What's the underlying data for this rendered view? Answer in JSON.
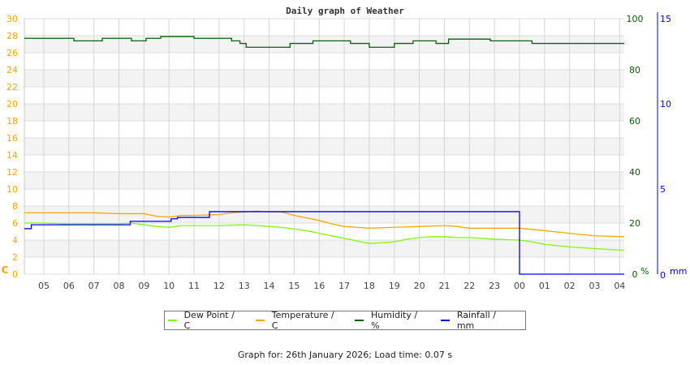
{
  "chart_data": {
    "type": "line",
    "title": "Daily graph of Weather",
    "x_ticks": [
      "05",
      "06",
      "07",
      "08",
      "09",
      "10",
      "11",
      "12",
      "13",
      "14",
      "15",
      "16",
      "17",
      "18",
      "19",
      "20",
      "21",
      "22",
      "23",
      "00",
      "01",
      "02",
      "03",
      "04"
    ],
    "x_range": [
      "04:13",
      "04:13"
    ],
    "axes": {
      "left": {
        "unit": "C",
        "range": [
          0,
          30
        ],
        "ticks": [
          0,
          2,
          4,
          6,
          8,
          10,
          12,
          14,
          16,
          18,
          20,
          22,
          24,
          26,
          28,
          30
        ],
        "color": "#ffa500"
      },
      "right_humidity": {
        "unit": "%",
        "range": [
          0,
          100
        ],
        "ticks": [
          0,
          20,
          40,
          60,
          80,
          100
        ],
        "color": "#006400"
      },
      "right_rain": {
        "unit": "mm",
        "range": [
          0,
          15
        ],
        "ticks": [
          0,
          5,
          10,
          15
        ],
        "color": "#0000ff"
      }
    },
    "grid": true,
    "legend_placement": "bottom",
    "series": [
      {
        "name": "Dew Point / C",
        "axis": "left",
        "color": "#7cfc00",
        "step": false,
        "points": [
          [
            "04:13",
            6.0
          ],
          [
            "05:00",
            6.0
          ],
          [
            "06:00",
            5.9
          ],
          [
            "07:00",
            5.9
          ],
          [
            "08:00",
            5.9
          ],
          [
            "08:30",
            6.0
          ],
          [
            "09:00",
            5.8
          ],
          [
            "09:30",
            5.6
          ],
          [
            "10:00",
            5.5
          ],
          [
            "10:30",
            5.7
          ],
          [
            "11:00",
            5.7
          ],
          [
            "12:00",
            5.7
          ],
          [
            "13:00",
            5.8
          ],
          [
            "13:30",
            5.7
          ],
          [
            "14:00",
            5.6
          ],
          [
            "14:30",
            5.5
          ],
          [
            "15:00",
            5.3
          ],
          [
            "15:30",
            5.1
          ],
          [
            "16:00",
            4.8
          ],
          [
            "16:30",
            4.5
          ],
          [
            "17:00",
            4.2
          ],
          [
            "17:30",
            3.9
          ],
          [
            "18:00",
            3.6
          ],
          [
            "18:30",
            3.7
          ],
          [
            "19:00",
            3.8
          ],
          [
            "19:30",
            4.1
          ],
          [
            "20:00",
            4.3
          ],
          [
            "20:30",
            4.4
          ],
          [
            "21:00",
            4.4
          ],
          [
            "21:30",
            4.3
          ],
          [
            "22:00",
            4.3
          ],
          [
            "23:00",
            4.1
          ],
          [
            "00:00",
            4.0
          ],
          [
            "00:30",
            3.8
          ],
          [
            "01:00",
            3.5
          ],
          [
            "02:00",
            3.2
          ],
          [
            "03:00",
            3.0
          ],
          [
            "04:13",
            2.8
          ]
        ]
      },
      {
        "name": "Temperature / C",
        "axis": "left",
        "color": "#ffa500",
        "step": false,
        "points": [
          [
            "04:13",
            7.2
          ],
          [
            "05:00",
            7.2
          ],
          [
            "06:00",
            7.2
          ],
          [
            "07:00",
            7.2
          ],
          [
            "08:00",
            7.1
          ],
          [
            "09:00",
            7.1
          ],
          [
            "09:30",
            6.8
          ],
          [
            "10:00",
            6.7
          ],
          [
            "10:30",
            6.9
          ],
          [
            "11:00",
            6.9
          ],
          [
            "12:00",
            7.0
          ],
          [
            "12:30",
            7.2
          ],
          [
            "13:00",
            7.3
          ],
          [
            "13:30",
            7.4
          ],
          [
            "14:00",
            7.3
          ],
          [
            "14:30",
            7.3
          ],
          [
            "15:00",
            6.9
          ],
          [
            "15:30",
            6.6
          ],
          [
            "16:00",
            6.3
          ],
          [
            "16:30",
            5.9
          ],
          [
            "17:00",
            5.6
          ],
          [
            "17:30",
            5.5
          ],
          [
            "18:00",
            5.4
          ],
          [
            "19:00",
            5.5
          ],
          [
            "20:00",
            5.6
          ],
          [
            "21:00",
            5.7
          ],
          [
            "21:30",
            5.6
          ],
          [
            "22:00",
            5.4
          ],
          [
            "23:00",
            5.4
          ],
          [
            "00:00",
            5.4
          ],
          [
            "01:00",
            5.1
          ],
          [
            "02:00",
            4.8
          ],
          [
            "03:00",
            4.5
          ],
          [
            "04:13",
            4.4
          ]
        ]
      },
      {
        "name": "Humidity / %",
        "axis": "right_humidity",
        "color": "#006400",
        "step": true,
        "points": [
          [
            "04:13",
            92.3
          ],
          [
            "06:12",
            91.3
          ],
          [
            "07:20",
            92.3
          ],
          [
            "08:30",
            91.3
          ],
          [
            "09:05",
            92.3
          ],
          [
            "09:40",
            93.0
          ],
          [
            "11:00",
            92.3
          ],
          [
            "12:30",
            91.3
          ],
          [
            "12:50",
            90.3
          ],
          [
            "13:05",
            88.8
          ],
          [
            "14:50",
            90.3
          ],
          [
            "15:45",
            91.3
          ],
          [
            "17:15",
            90.3
          ],
          [
            "18:00",
            88.8
          ],
          [
            "19:00",
            90.3
          ],
          [
            "19:45",
            91.3
          ],
          [
            "20:40",
            90.3
          ],
          [
            "21:10",
            92.0
          ],
          [
            "22:50",
            91.3
          ],
          [
            "00:30",
            90.3
          ],
          [
            "04:13",
            90.3
          ]
        ]
      },
      {
        "name": "Rainfall / mm",
        "axis": "right_rain",
        "color": "#0000ff",
        "step": true,
        "points": [
          [
            "04:13",
            2.67
          ],
          [
            "04:30",
            2.9
          ],
          [
            "08:27",
            3.1
          ],
          [
            "10:05",
            3.25
          ],
          [
            "10:20",
            3.33
          ],
          [
            "11:37",
            3.67
          ],
          [
            "00:00",
            0
          ],
          [
            "04:13",
            0
          ]
        ]
      }
    ]
  },
  "legend": [
    {
      "label": "Dew Point / C",
      "color": "#7cfc00"
    },
    {
      "label": "Temperature / C",
      "color": "#ffa500"
    },
    {
      "label": "Humidity / %",
      "color": "#006400"
    },
    {
      "label": "Rainfall / mm",
      "color": "#0000ff"
    }
  ],
  "footer": "Graph for: 26th January 2026; Load time: 0.07 s"
}
